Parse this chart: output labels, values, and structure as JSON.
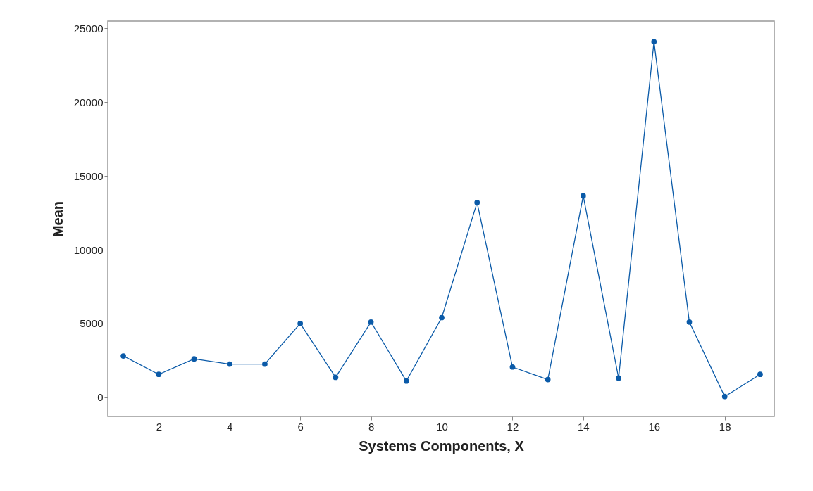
{
  "chart_data": {
    "type": "line",
    "xlabel": "Systems Components, X",
    "ylabel": "Mean",
    "x": [
      1,
      2,
      3,
      4,
      5,
      6,
      7,
      8,
      9,
      10,
      11,
      12,
      13,
      14,
      15,
      16,
      17,
      18,
      19
    ],
    "series": [
      {
        "color": "#0a5aa8",
        "values": [
          2800,
          1550,
          2600,
          2250,
          2250,
          5000,
          1350,
          5100,
          1100,
          5400,
          13200,
          2050,
          1200,
          13650,
          1300,
          24100,
          5100,
          50,
          1550
        ]
      }
    ],
    "xlim": [
      0.56,
      19.4
    ],
    "xticks": [
      2,
      4,
      6,
      8,
      10,
      12,
      14,
      16,
      18
    ],
    "ylim": [
      -1300,
      25500
    ],
    "yticks": [
      0,
      5000,
      10000,
      15000,
      20000,
      25000
    ],
    "grid": false,
    "marker": "circle",
    "line_style": "solid"
  }
}
